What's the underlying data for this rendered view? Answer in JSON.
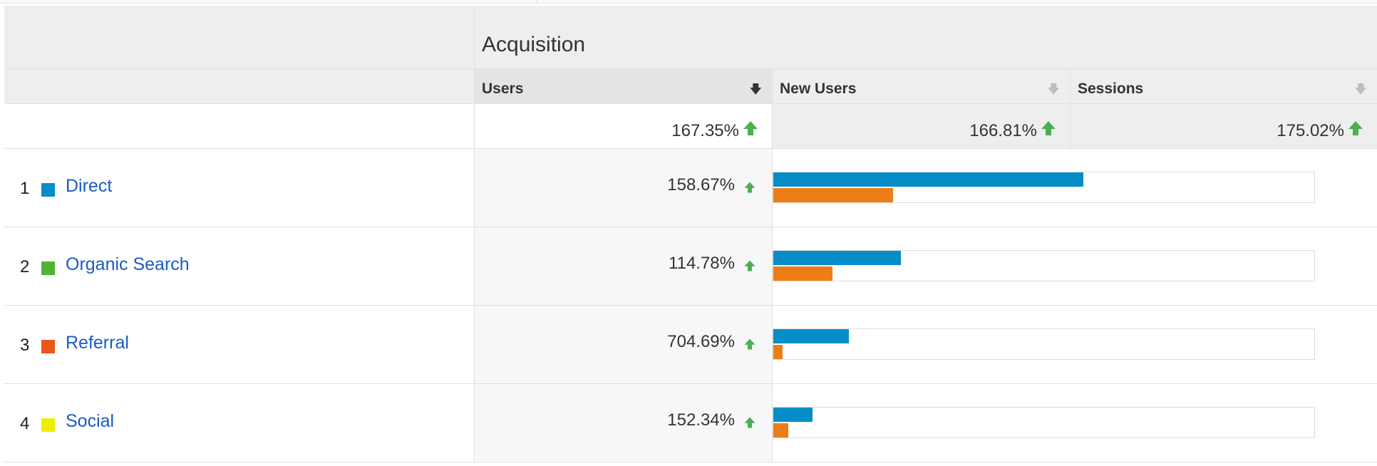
{
  "header": {
    "group_title": "Acquisition",
    "columns": [
      {
        "label": "Users",
        "sort_icon": "arrow-down-icon",
        "selected": true
      },
      {
        "label": "New Users",
        "sort_icon": "arrow-down-icon",
        "selected": false
      },
      {
        "label": "Sessions",
        "sort_icon": "arrow-down-icon",
        "selected": false
      }
    ]
  },
  "totals": [
    "167.35%",
    "166.81%",
    "175.02%"
  ],
  "rows": [
    {
      "index": "1",
      "label": "Direct",
      "swatch": "#058dc7",
      "pct": "158.67%",
      "bar_blue": 0.573,
      "bar_orange": 0.221
    },
    {
      "index": "2",
      "label": "Organic Search",
      "swatch": "#50b432",
      "pct": "114.78%",
      "bar_blue": 0.236,
      "bar_orange": 0.11
    },
    {
      "index": "3",
      "label": "Referral",
      "swatch": "#ed561b",
      "pct": "704.69%",
      "bar_blue": 0.139,
      "bar_orange": 0.017
    },
    {
      "index": "4",
      "label": "Social",
      "swatch": "#edef00",
      "pct": "152.34%",
      "bar_blue": 0.073,
      "bar_orange": 0.028
    }
  ],
  "colors": {
    "increase": "#4caf50",
    "bar_blue": "#058dc7",
    "bar_orange": "#ed7e17",
    "link": "#1a5bc4"
  }
}
